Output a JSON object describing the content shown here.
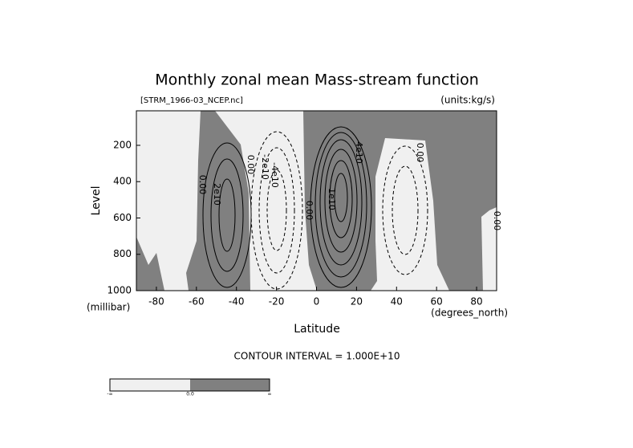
{
  "chart_data": {
    "type": "contour",
    "title": "Monthly zonal mean Mass-stream function",
    "subtitle": "[STRM_1966-03_NCEP.nc]",
    "units": "(units:kg/s)",
    "x_label": "Latitude",
    "x_unit": "(degrees_north)",
    "y_label": "Level",
    "y_unit": "(millibar)",
    "xlim": [
      -90,
      90
    ],
    "xticks": [
      -80,
      -60,
      -40,
      -20,
      0,
      20,
      40,
      60,
      80
    ],
    "ylim": [
      1000,
      10
    ],
    "yticks": [
      200,
      400,
      600,
      800,
      1000
    ],
    "contour_interval": "CONTOUR INTERVAL = 1.000E+10",
    "contour_labels": [
      "0.00",
      "2e10",
      "0.00",
      "-2e10",
      "-4e10",
      "0.00",
      "1e10",
      "4e10",
      "0.00",
      "0.00"
    ],
    "colors": [
      "#f0f0f0",
      "#808080"
    ],
    "colorbar_labels": [
      "-∞",
      "0.0",
      "∞"
    ]
  }
}
